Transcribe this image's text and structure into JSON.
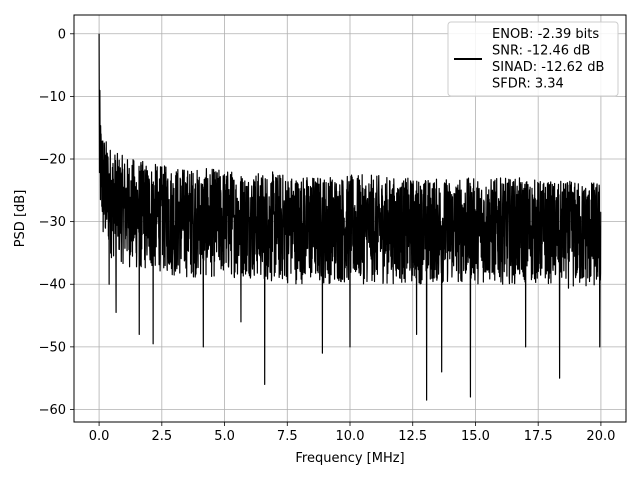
{
  "chart_data": {
    "type": "line",
    "title": "",
    "xlabel": "Frequency [MHz]",
    "ylabel": "PSD [dB]",
    "xlim": [
      -1.0,
      21.0
    ],
    "ylim": [
      -62.0,
      3.0
    ],
    "xticks": [
      0.0,
      2.5,
      5.0,
      7.5,
      10.0,
      12.5,
      15.0,
      17.5,
      20.0
    ],
    "xtick_labels": [
      "0.0",
      "2.5",
      "5.0",
      "7.5",
      "10.0",
      "12.5",
      "15.0",
      "17.5",
      "20.0"
    ],
    "yticks": [
      0,
      -10,
      -20,
      -30,
      -40,
      -50,
      -60
    ],
    "ytick_labels": [
      "0",
      "−10",
      "−20",
      "−30",
      "−40",
      "−50",
      "−60"
    ],
    "grid": true,
    "legend_placement": "top-right",
    "legend_lines": [
      "ENOB: -2.39 bits",
      "SNR: -12.46 dB",
      "SINAD: -12.62 dB",
      "SFDR: 3.34"
    ],
    "line_color": "#000000",
    "series": [
      {
        "x": [
          0.0,
          0.02,
          0.05,
          0.1,
          0.15,
          0.2,
          0.3,
          0.5,
          0.7,
          1.0,
          1.5,
          2.0,
          2.5,
          3.0,
          4.0,
          5.0,
          6.0,
          7.0,
          8.0,
          9.0,
          10.0,
          11.0,
          12.0,
          13.0,
          14.0,
          15.0,
          16.0,
          17.0,
          18.0,
          19.0,
          20.0
        ],
        "upper": [
          0.0,
          -7,
          -12.5,
          -14,
          -15,
          -16,
          -17,
          -18,
          -19,
          -19.5,
          -20,
          -20.5,
          -21,
          -21,
          -21.5,
          -21.5,
          -22,
          -22,
          -22.5,
          -22.5,
          -22.5,
          -22.5,
          -23,
          -23,
          -23,
          -23,
          -23,
          -23,
          -23.5,
          -23.5,
          -23.5
        ],
        "lower": [
          -24,
          -33,
          -30,
          -31,
          -34,
          -35,
          -34,
          -36,
          -36,
          -37,
          -38,
          -38,
          -38,
          -39,
          -39,
          -39,
          -39,
          -40,
          -40,
          -40,
          -40,
          -40,
          -40,
          -40,
          -40,
          -40,
          -40,
          -40,
          -40,
          -41,
          -41
        ],
        "dips": [
          [
            0.4,
            -40
          ],
          [
            0.68,
            -44.5
          ],
          [
            1.6,
            -48
          ],
          [
            2.15,
            -49.5
          ],
          [
            4.15,
            -50
          ],
          [
            5.65,
            -46
          ],
          [
            6.6,
            -56
          ],
          [
            8.9,
            -51
          ],
          [
            10.0,
            -50
          ],
          [
            12.65,
            -48
          ],
          [
            13.05,
            -58.5
          ],
          [
            13.65,
            -54
          ],
          [
            14.8,
            -58
          ],
          [
            17.0,
            -50
          ],
          [
            18.35,
            -55
          ],
          [
            19.95,
            -50
          ]
        ]
      }
    ]
  }
}
